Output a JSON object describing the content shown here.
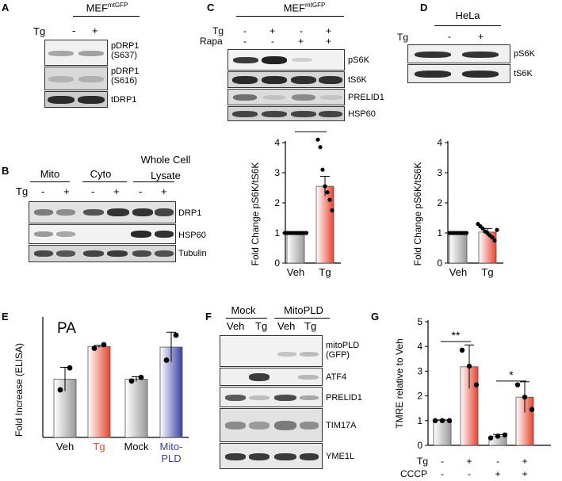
{
  "figure": {
    "panel_letters": [
      "A",
      "B",
      "C",
      "D",
      "E",
      "F",
      "G"
    ],
    "A": {
      "cell_line": "MEF",
      "cell_line_sup": "mtGFP",
      "treatment": "Tg",
      "lanes": [
        "-",
        "+"
      ],
      "blots": [
        "pDRP1\n(S637)",
        "pDRP1\n(S616)",
        "tDRP1"
      ]
    },
    "B": {
      "groups": [
        "Mito",
        "Cyto",
        "Whole Cell\nLysate"
      ],
      "treatment": "Tg",
      "lanes": [
        "-",
        "+",
        "-",
        "+",
        "-",
        "+"
      ],
      "blots": [
        "DRP1",
        "HSP60",
        "Tubulin"
      ]
    },
    "C": {
      "cell_line": "MEF",
      "cell_line_sup": "mtGFP",
      "row1_label": "Tg",
      "row1": [
        "-",
        "+",
        "-",
        "+"
      ],
      "row2_label": "Rapa",
      "row2": [
        "-",
        "-",
        "+",
        "+"
      ],
      "blots": [
        "pS6K",
        "tS6K",
        "PRELID1",
        "HSP60"
      ]
    },
    "D": {
      "cell_line": "HeLa",
      "treatment": "Tg",
      "lanes": [
        "-",
        "+"
      ],
      "blots": [
        "pS6K",
        "tS6K"
      ]
    },
    "F": {
      "groups": [
        "Mock",
        "MitoPLD"
      ],
      "lanes": [
        "Veh",
        "Tg",
        "Veh",
        "Tg"
      ],
      "blots": [
        "mitoPLD\n(GFP)",
        "ATF4",
        "PRELID1",
        "TIM17A",
        "YME1L"
      ]
    }
  },
  "chart_data": [
    {
      "id": "C-chart",
      "type": "bar",
      "ylabel": "Fold Change pS6K/tS6K",
      "categories": [
        "Veh",
        "Tg"
      ],
      "values": [
        1.0,
        2.55
      ],
      "errors": [
        0.02,
        0.33
      ],
      "points": [
        [
          1,
          1,
          1,
          1,
          1,
          1,
          1,
          1,
          1,
          1
        ],
        [
          4.1,
          3.85,
          3.1,
          2.55,
          2.35,
          2.1,
          1.75
        ]
      ],
      "colors": [
        "#9a9a9a",
        "#e8432f"
      ],
      "ylim": [
        0,
        4
      ],
      "yticks": [
        0,
        1,
        2,
        3,
        4
      ],
      "significance": "***"
    },
    {
      "id": "D-chart",
      "type": "bar",
      "ylabel": "Fold Change pS6K/tS6K",
      "categories": [
        "Veh",
        "Tg"
      ],
      "values": [
        1.0,
        1.03
      ],
      "errors": [
        0.02,
        0.12
      ],
      "points": [
        [
          1,
          1,
          1,
          1,
          1,
          1,
          1,
          1
        ],
        [
          1.3,
          1.22,
          1.15,
          1.05,
          1.0,
          0.92,
          0.85,
          0.75,
          1.1
        ]
      ],
      "colors": [
        "#9a9a9a",
        "#e8432f"
      ],
      "ylim": [
        0,
        4
      ],
      "yticks": [
        0,
        1,
        2,
        3,
        4
      ]
    },
    {
      "id": "E-chart",
      "type": "bar",
      "title": "PA",
      "ylabel": "Fold Increase (ELISA)",
      "categories": [
        "Veh",
        "Tg",
        "Mock",
        "Mito-\nPLD"
      ],
      "category_colors": [
        "#000000",
        "#e8432f",
        "#000000",
        "#3b3fa6"
      ],
      "values": [
        0.98,
        1.53,
        0.98,
        1.52
      ],
      "errors": [
        0.2,
        0.02,
        0.04,
        0.25
      ],
      "points": [
        [
          0.8,
          1.17
        ],
        [
          1.5,
          1.56
        ],
        [
          0.95,
          1.01
        ],
        [
          1.3,
          1.72
        ]
      ],
      "colors": [
        "#9a9a9a",
        "#e8432f",
        "#9a9a9a",
        "#3b3fa6"
      ],
      "ylim": [
        0,
        2
      ],
      "yticks": []
    },
    {
      "id": "G-chart",
      "type": "bar",
      "ylabel": "TMRE relative to Veh",
      "categories": [
        "1",
        "2",
        "3",
        "4"
      ],
      "row1_label": "Tg",
      "row1": [
        "-",
        "+",
        "-",
        "+"
      ],
      "row2_label": "CCCP",
      "row2": [
        "-",
        "-",
        "+",
        "+"
      ],
      "values": [
        1.0,
        3.18,
        0.36,
        1.95
      ],
      "errors": [
        0.03,
        0.88,
        0.08,
        0.62
      ],
      "points": [
        [
          1.0,
          1.0,
          1.0
        ],
        [
          3.85,
          3.2,
          2.45
        ],
        [
          0.3,
          0.37,
          0.42
        ],
        [
          2.45,
          1.95,
          1.45
        ]
      ],
      "colors": [
        "#9a9a9a",
        "#e8432f",
        "#9a9a9a",
        "#e8432f"
      ],
      "ylim": [
        0,
        5
      ],
      "yticks": [
        0,
        1,
        2,
        3,
        4,
        5
      ],
      "significance": [
        "**",
        "*"
      ]
    }
  ]
}
